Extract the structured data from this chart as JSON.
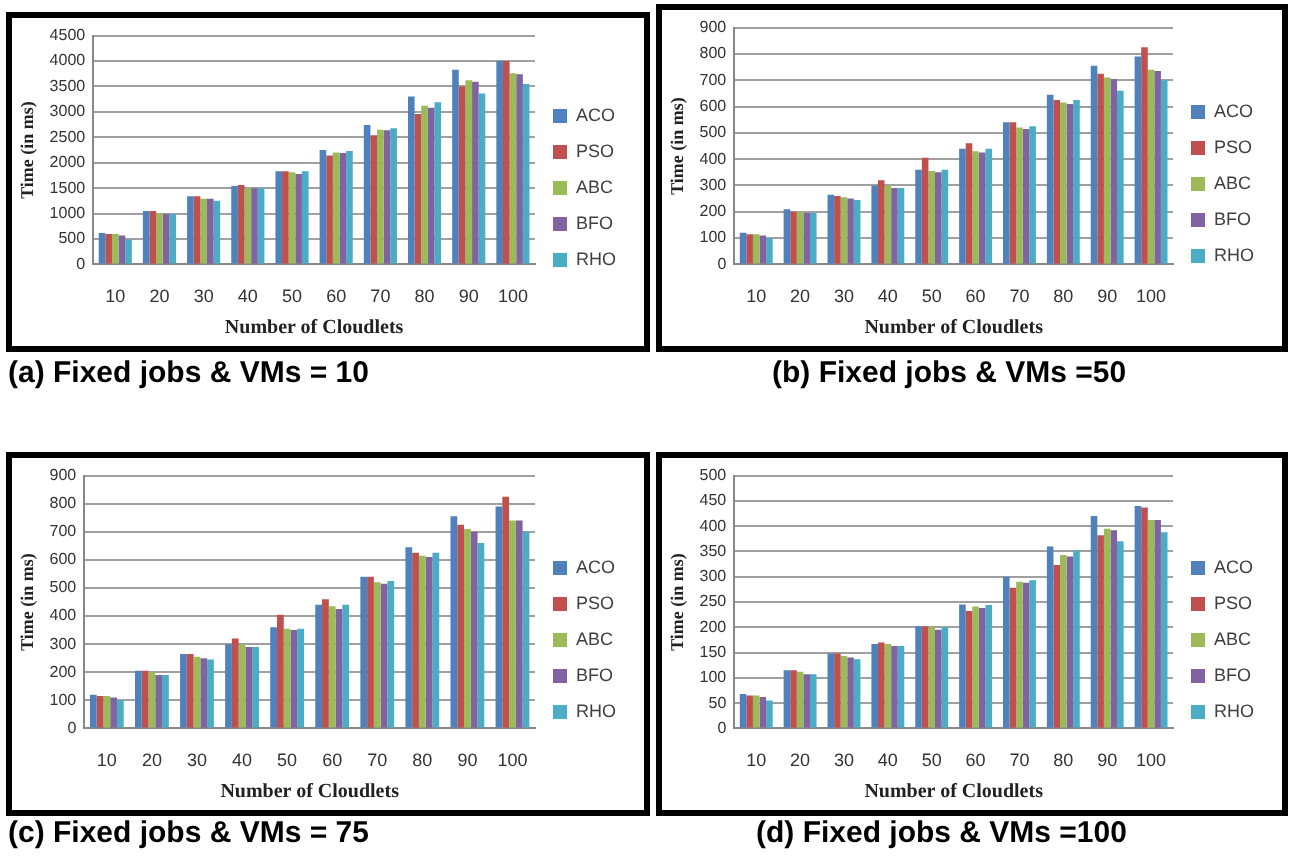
{
  "chart_data": [
    {
      "type": "bar",
      "title": "(a) Fixed jobs & VMs = 10",
      "xlabel": "Number of Cloudlets",
      "ylabel": "Time (in ms)",
      "categories": [
        "10",
        "20",
        "30",
        "40",
        "50",
        "60",
        "70",
        "80",
        "90",
        "100"
      ],
      "ylim": [
        0,
        4500
      ],
      "yticks": [
        0,
        500,
        1000,
        1500,
        2000,
        2500,
        3000,
        3500,
        4000,
        4500
      ],
      "grid": "y",
      "legend": "right",
      "series": [
        {
          "name": "ACO",
          "color": "#4f81bd",
          "values": [
            620,
            1050,
            1340,
            1540,
            1830,
            2250,
            2740,
            3300,
            3830,
            4000
          ]
        },
        {
          "name": "PSO",
          "color": "#c0504d",
          "values": [
            600,
            1050,
            1340,
            1560,
            1830,
            2140,
            2540,
            2960,
            3500,
            4000
          ]
        },
        {
          "name": "ABC",
          "color": "#9bbb59",
          "values": [
            600,
            1000,
            1290,
            1500,
            1810,
            2200,
            2650,
            3120,
            3620,
            3760
          ]
        },
        {
          "name": "BFO",
          "color": "#8064a2",
          "values": [
            570,
            990,
            1290,
            1500,
            1780,
            2190,
            2640,
            3080,
            3590,
            3740
          ]
        },
        {
          "name": "RHO",
          "color": "#4bacc6",
          "values": [
            490,
            990,
            1250,
            1500,
            1830,
            2230,
            2680,
            3190,
            3360,
            3550
          ]
        }
      ]
    },
    {
      "type": "bar",
      "title": "(b) Fixed jobs & VMs =50",
      "xlabel": "Number of Cloudlets",
      "ylabel": "Time (in ms)",
      "categories": [
        "10",
        "20",
        "30",
        "40",
        "50",
        "60",
        "70",
        "80",
        "90",
        "100"
      ],
      "ylim": [
        0,
        900
      ],
      "yticks": [
        0,
        100,
        200,
        300,
        400,
        500,
        600,
        700,
        800,
        900
      ],
      "grid": "y",
      "legend": "right",
      "series": [
        {
          "name": "ACO",
          "color": "#4f81bd",
          "values": [
            120,
            210,
            265,
            300,
            360,
            440,
            540,
            645,
            755,
            790
          ]
        },
        {
          "name": "PSO",
          "color": "#c0504d",
          "values": [
            115,
            200,
            260,
            320,
            405,
            460,
            540,
            625,
            725,
            825
          ]
        },
        {
          "name": "ABC",
          "color": "#9bbb59",
          "values": [
            115,
            200,
            255,
            300,
            355,
            430,
            520,
            615,
            710,
            740
          ]
        },
        {
          "name": "BFO",
          "color": "#8064a2",
          "values": [
            110,
            195,
            250,
            290,
            350,
            425,
            515,
            610,
            705,
            735
          ]
        },
        {
          "name": "RHO",
          "color": "#4bacc6",
          "values": [
            100,
            195,
            245,
            290,
            360,
            440,
            525,
            625,
            660,
            700
          ]
        }
      ]
    },
    {
      "type": "bar",
      "title": "(c) Fixed jobs & VMs = 75",
      "xlabel": "Number of Cloudlets",
      "ylabel": "Time (in ms)",
      "categories": [
        "10",
        "20",
        "30",
        "40",
        "50",
        "60",
        "70",
        "80",
        "90",
        "100"
      ],
      "ylim": [
        0,
        900
      ],
      "yticks": [
        0,
        100,
        200,
        300,
        400,
        500,
        600,
        700,
        800,
        900
      ],
      "grid": "y",
      "legend": "right",
      "series": [
        {
          "name": "ACO",
          "color": "#4f81bd",
          "values": [
            120,
            205,
            265,
            300,
            360,
            440,
            540,
            645,
            755,
            790
          ]
        },
        {
          "name": "PSO",
          "color": "#c0504d",
          "values": [
            115,
            205,
            265,
            320,
            405,
            460,
            540,
            625,
            725,
            825
          ]
        },
        {
          "name": "ABC",
          "color": "#9bbb59",
          "values": [
            115,
            200,
            255,
            300,
            355,
            435,
            520,
            615,
            710,
            740
          ]
        },
        {
          "name": "BFO",
          "color": "#8064a2",
          "values": [
            110,
            190,
            250,
            290,
            350,
            425,
            515,
            610,
            700,
            740
          ]
        },
        {
          "name": "RHO",
          "color": "#4bacc6",
          "values": [
            100,
            190,
            245,
            290,
            355,
            440,
            525,
            625,
            660,
            700
          ]
        }
      ]
    },
    {
      "type": "bar",
      "title": "(d) Fixed jobs & VMs =100",
      "xlabel": "Number of Cloudlets",
      "ylabel": "Time (in ms)",
      "categories": [
        "10",
        "20",
        "30",
        "40",
        "50",
        "60",
        "70",
        "80",
        "90",
        "100"
      ],
      "ylim": [
        0,
        500
      ],
      "yticks": [
        0,
        50,
        100,
        150,
        200,
        250,
        300,
        350,
        400,
        450,
        500
      ],
      "grid": "y",
      "legend": "right",
      "series": [
        {
          "name": "ACO",
          "color": "#4f81bd",
          "values": [
            68,
            115,
            148,
            167,
            202,
            245,
            300,
            360,
            420,
            440
          ]
        },
        {
          "name": "PSO",
          "color": "#c0504d",
          "values": [
            65,
            115,
            148,
            170,
            202,
            232,
            278,
            323,
            382,
            437
          ]
        },
        {
          "name": "ABC",
          "color": "#9bbb59",
          "values": [
            65,
            112,
            143,
            167,
            200,
            241,
            290,
            343,
            395,
            412
          ]
        },
        {
          "name": "BFO",
          "color": "#8064a2",
          "values": [
            62,
            107,
            140,
            163,
            195,
            238,
            288,
            340,
            392,
            412
          ]
        },
        {
          "name": "RHO",
          "color": "#4bacc6",
          "values": [
            55,
            107,
            137,
            163,
            200,
            244,
            293,
            352,
            370,
            388
          ]
        }
      ]
    }
  ]
}
